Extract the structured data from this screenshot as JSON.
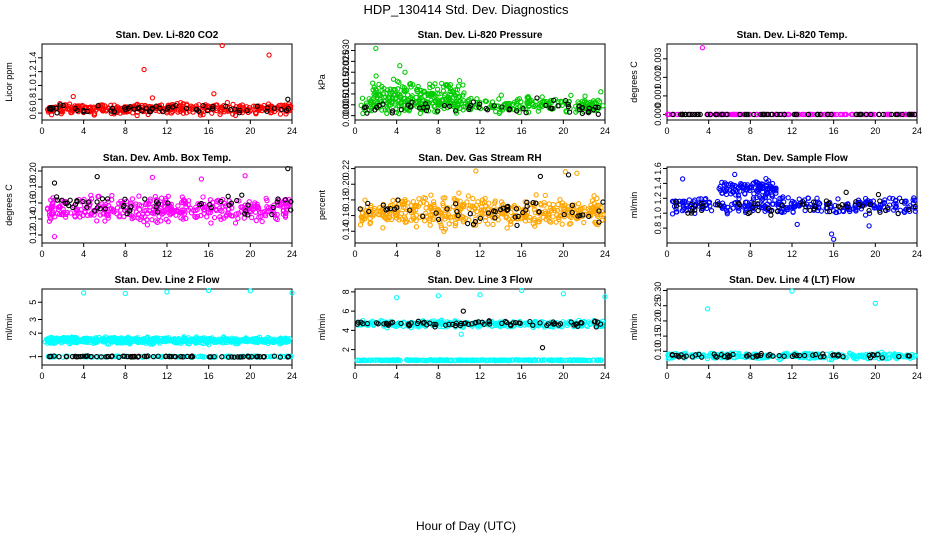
{
  "title": "HDP_130414  Std. Dev. Diagnostics",
  "xlabel": "Hour of Day (UTC)",
  "chart_data": [
    {
      "type": "scatter",
      "title": "Stan. Dev. Li-820 CO2",
      "ylabel": "Licor ppm",
      "xlim": [
        0,
        24
      ],
      "ylim": [
        0.5,
        1.6
      ],
      "xticks": [
        "0",
        "4",
        "8",
        "12",
        "16",
        "20",
        "24"
      ],
      "yticks": [
        "0.6",
        "0.8",
        "1.0",
        "1.2",
        "1.4"
      ],
      "ytick_values": [
        0.6,
        0.8,
        1.0,
        1.2,
        1.4
      ],
      "color": "#ff0000",
      "band": {
        "x": [
          0.5,
          23.9
        ],
        "center": 0.66,
        "spread": 0.08,
        "n": 360
      },
      "black_band": {
        "x": [
          0.5,
          23.9
        ],
        "center": 0.66,
        "spread": 0.06,
        "n": 60
      },
      "outliers": [
        [
          9.8,
          1.23
        ],
        [
          17.3,
          1.59
        ],
        [
          21.8,
          1.44
        ],
        [
          16.5,
          0.88
        ],
        [
          3.0,
          0.84
        ],
        [
          10.6,
          0.82
        ]
      ],
      "black_outliers": [
        [
          23.6,
          0.8
        ]
      ]
    },
    {
      "type": "scatter",
      "title": "Stan. Dev. Li-820 Pressure",
      "ylabel": "kPa",
      "xlim": [
        0,
        24
      ],
      "ylim": [
        -0.002,
        0.033
      ],
      "xticks": [
        "0",
        "4",
        "8",
        "12",
        "16",
        "20",
        "24"
      ],
      "yticks": [
        "0.000",
        "0.005",
        "0.010",
        "0.015",
        "0.020",
        "0.025",
        "0.030"
      ],
      "ytick_values": [
        0,
        0.005,
        0.01,
        0.015,
        0.02,
        0.025,
        0.03
      ],
      "color": "#00cc00",
      "band": {
        "x": [
          0.5,
          23.9
        ],
        "center": 0.005,
        "spread": 0.004,
        "n": 300
      },
      "black_band": {
        "x": [
          0.5,
          23.9
        ],
        "center": 0.004,
        "spread": 0.004,
        "n": 60
      },
      "hump": {
        "x": [
          1.5,
          10.5
        ],
        "center": 0.011,
        "spread": 0.006,
        "n": 140
      },
      "outliers": [
        [
          2.0,
          0.031
        ],
        [
          4.3,
          0.023
        ],
        [
          4.8,
          0.02
        ],
        [
          23.6,
          0.011
        ]
      ],
      "black_outliers": []
    },
    {
      "type": "scatter",
      "title": "Stan. Dev. Li-820 Temp.",
      "ylabel": "degrees C",
      "xlim": [
        0,
        24
      ],
      "ylim": [
        -0.0003,
        0.0038
      ],
      "xticks": [
        "0",
        "4",
        "8",
        "12",
        "16",
        "20",
        "24"
      ],
      "yticks": [
        "0.000",
        "0.001",
        "0.002",
        "0.003"
      ],
      "ytick_values": [
        0,
        0.001,
        0.002,
        0.003
      ],
      "color": "#ff00ff",
      "band": {
        "x": [
          0.0,
          24.0
        ],
        "center": 0.0,
        "spread": 0.0,
        "n": 130
      },
      "black_band": {
        "x": [
          0.5,
          23.8
        ],
        "center": 0.0,
        "spread": 0.0,
        "n": 70
      },
      "outliers": [
        [
          3.4,
          0.0036
        ],
        [
          0.1,
          0.0
        ]
      ],
      "black_outliers": []
    },
    {
      "type": "scatter",
      "title": "Stan. Dev. Amb. Box Temp.",
      "ylabel": "degrees C",
      "xlim": [
        0,
        24
      ],
      "ylim": [
        0.11,
        0.205
      ],
      "xticks": [
        "0",
        "4",
        "8",
        "12",
        "16",
        "20",
        "24"
      ],
      "yticks": [
        "0.12",
        "0.14",
        "0.16",
        "0.18",
        "0.20"
      ],
      "ytick_values": [
        0.12,
        0.14,
        0.16,
        0.18,
        0.2
      ],
      "color": "#ff00ff",
      "band": {
        "x": [
          0.5,
          23.9
        ],
        "center": 0.152,
        "spread": 0.016,
        "n": 380
      },
      "black_band": {
        "x": [
          0.5,
          23.9
        ],
        "center": 0.158,
        "spread": 0.015,
        "n": 55
      },
      "outliers": [
        [
          1.2,
          0.118
        ],
        [
          10.6,
          0.192
        ],
        [
          19.5,
          0.194
        ],
        [
          15.3,
          0.19
        ]
      ],
      "black_outliers": [
        [
          23.6,
          0.203
        ],
        [
          5.3,
          0.193
        ],
        [
          1.2,
          0.185
        ]
      ]
    },
    {
      "type": "scatter",
      "title": "Stan. Dev. Gas Stream RH",
      "ylabel": "percent",
      "xlim": [
        0,
        24
      ],
      "ylim": [
        0.125,
        0.222
      ],
      "xticks": [
        "0",
        "4",
        "8",
        "12",
        "16",
        "20",
        "24"
      ],
      "yticks": [
        "0.14",
        "0.16",
        "0.18",
        "0.20",
        "0.22"
      ],
      "ytick_values": [
        0.14,
        0.16,
        0.18,
        0.2,
        0.22
      ],
      "color": "#ffa500",
      "band": {
        "x": [
          0.5,
          23.9
        ],
        "center": 0.165,
        "spread": 0.02,
        "n": 440
      },
      "black_band": {
        "x": [
          0.5,
          23.9
        ],
        "center": 0.166,
        "spread": 0.017,
        "n": 55
      },
      "outliers": [
        [
          11.6,
          0.217
        ],
        [
          20.2,
          0.216
        ],
        [
          21.3,
          0.214
        ]
      ],
      "black_outliers": [
        [
          17.8,
          0.21
        ],
        [
          20.5,
          0.212
        ]
      ]
    },
    {
      "type": "scatter",
      "title": "Stan. Dev. Sample Flow",
      "ylabel": "ml/min",
      "xlim": [
        0,
        24
      ],
      "ylim": [
        0.6,
        1.62
      ],
      "xticks": [
        "0",
        "4",
        "8",
        "12",
        "16",
        "20",
        "24"
      ],
      "yticks": [
        "0.8",
        "1.0",
        "1.2",
        "1.4",
        "1.6"
      ],
      "ytick_values": [
        0.8,
        1.0,
        1.2,
        1.4,
        1.6
      ],
      "color": "#0000ff",
      "band": {
        "x": [
          0.5,
          23.9
        ],
        "center": 1.1,
        "spread": 0.12,
        "n": 290
      },
      "black_band": {
        "x": [
          0.5,
          23.9
        ],
        "center": 1.08,
        "spread": 0.1,
        "n": 55
      },
      "hump": {
        "x": [
          5.0,
          10.5
        ],
        "center": 1.33,
        "spread": 0.12,
        "n": 110
      },
      "outliers": [
        [
          16.0,
          0.65
        ],
        [
          15.8,
          0.72
        ],
        [
          19.4,
          0.83
        ],
        [
          12.5,
          0.85
        ],
        [
          1.5,
          1.46
        ],
        [
          6.5,
          1.52
        ]
      ],
      "black_outliers": [
        [
          17.2,
          1.28
        ],
        [
          20.3,
          1.25
        ]
      ]
    },
    {
      "type": "scatter",
      "title": "Stan. Dev. Line 2 Flow",
      "ylabel": "ml/min",
      "xlim": [
        0,
        24
      ],
      "ylim": [
        0.78,
        7.4
      ],
      "ylog": true,
      "xticks": [
        "0",
        "4",
        "8",
        "12",
        "16",
        "20",
        "24"
      ],
      "yticks": [
        "1",
        "2",
        "3",
        "5"
      ],
      "ytick_values": [
        1,
        2,
        3,
        5
      ],
      "color": "#00ffff",
      "band": {
        "x": [
          0.3,
          23.8
        ],
        "center": 1.62,
        "spread": 0.16,
        "n": 620
      },
      "black_band": {
        "x": [
          0.5,
          23.9
        ],
        "center": 1.0,
        "spread": 0.02,
        "n": 80
      },
      "low_band": {
        "x": [
          0.5,
          23.9
        ],
        "center": 1.0,
        "spread": 0.02,
        "n": 120
      },
      "outliers": [
        [
          4.0,
          6.6
        ],
        [
          8.0,
          6.5
        ],
        [
          12.0,
          6.8
        ],
        [
          16.0,
          7.3
        ],
        [
          20.0,
          7.0
        ],
        [
          24.0,
          6.6
        ]
      ],
      "black_outliers": []
    },
    {
      "type": "scatter",
      "title": "Stan. Dev. Line 3 Flow",
      "ylabel": "ml/min",
      "xlim": [
        0,
        24
      ],
      "ylim": [
        0.4,
        8.3
      ],
      "xticks": [
        "0",
        "4",
        "8",
        "12",
        "16",
        "20",
        "24"
      ],
      "yticks": [
        "2",
        "4",
        "6",
        "8"
      ],
      "ytick_values": [
        2,
        4,
        6,
        8
      ],
      "color": "#00ffff",
      "band": {
        "x": [
          0.2,
          23.8
        ],
        "center": 4.65,
        "spread": 0.35,
        "n": 300
      },
      "black_band": {
        "x": [
          0.2,
          23.8
        ],
        "center": 4.7,
        "spread": 0.35,
        "n": 80
      },
      "low_band": {
        "x": [
          0.2,
          23.9
        ],
        "center": 0.9,
        "spread": 0.05,
        "n": 260
      },
      "outliers": [
        [
          4.0,
          7.4
        ],
        [
          8.0,
          7.6
        ],
        [
          12.0,
          7.7
        ],
        [
          16.0,
          8.2
        ],
        [
          20.0,
          7.8
        ],
        [
          24.0,
          7.5
        ],
        [
          10.2,
          3.6
        ]
      ],
      "black_outliers": [
        [
          18.0,
          2.2
        ],
        [
          10.4,
          6.0
        ]
      ]
    },
    {
      "type": "scatter",
      "title": "Stan. Dev. Line 4 (LT) Flow",
      "ylabel": "ml/min",
      "xlim": [
        0,
        24
      ],
      "ylim": [
        0.055,
        0.305
      ],
      "xticks": [
        "0",
        "4",
        "8",
        "12",
        "16",
        "20",
        "24"
      ],
      "yticks": [
        "0.10",
        "0.15",
        "0.20",
        "0.25",
        "0.30"
      ],
      "ytick_values": [
        0.1,
        0.15,
        0.2,
        0.25,
        0.3
      ],
      "color": "#00ffff",
      "band": {
        "x": [
          0.0,
          23.9
        ],
        "center": 0.085,
        "spread": 0.011,
        "n": 300
      },
      "black_band": {
        "x": [
          0.5,
          23.9
        ],
        "center": 0.085,
        "spread": 0.007,
        "n": 60
      },
      "outliers": [
        [
          3.9,
          0.24
        ],
        [
          12.0,
          0.298
        ],
        [
          20.0,
          0.258
        ]
      ],
      "black_outliers": []
    }
  ]
}
